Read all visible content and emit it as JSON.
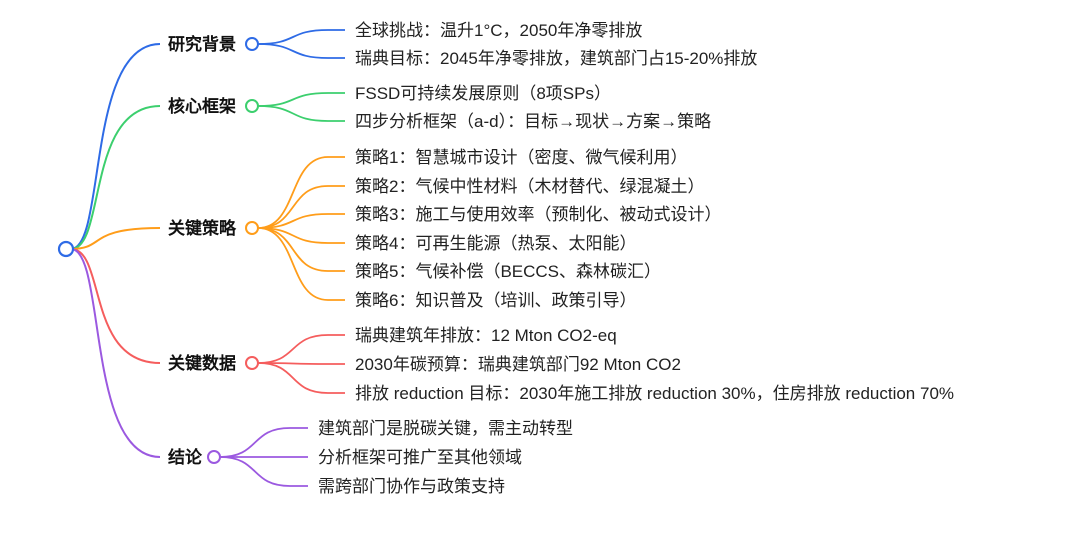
{
  "root": {
    "color": "#2e6be6"
  },
  "branches": [
    {
      "label": "研究背景",
      "color": "#2e6be6",
      "children": [
        "全球挑战：温升1°C，2050年净零排放",
        "瑞典目标：2045年净零排放，建筑部门占15-20%排放"
      ]
    },
    {
      "label": "核心框架",
      "color": "#3ccf6e",
      "children": [
        "FSSD可持续发展原则（8项SPs）",
        "四步分析框架（a-d）：目标→现状→方案→策略"
      ]
    },
    {
      "label": "关键策略",
      "color": "#ff9d1a",
      "children": [
        "策略1：智慧城市设计（密度、微气候利用）",
        "策略2：气候中性材料（木材替代、绿混凝土）",
        "策略3：施工与使用效率（预制化、被动式设计）",
        "策略4：可再生能源（热泵、太阳能）",
        "策略5：气候补偿（BECCS、森林碳汇）",
        "策略6：知识普及（培训、政策引导）"
      ]
    },
    {
      "label": "关键数据",
      "color": "#f55d5d",
      "children": [
        "瑞典建筑年排放：12 Mton CO2-eq",
        "2030年碳预算：瑞典建筑部门92 Mton CO2",
        "排放 reduction 目标：2030年施工排放 reduction 30%，住房排放 reduction 70%"
      ]
    },
    {
      "label": "结论",
      "color": "#9b59e0",
      "children": [
        "建筑部门是脱碳关键，需主动转型",
        "分析框架可推广至其他领域",
        "需跨部门协作与政策支持"
      ]
    }
  ]
}
